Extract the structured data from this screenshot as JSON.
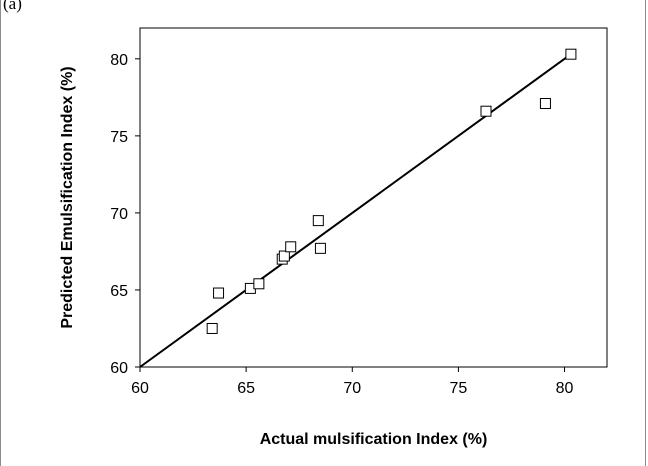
{
  "panel_label": "(a)",
  "chart_data": {
    "type": "scatter",
    "title": "",
    "xlabel": "Actual mulsification Index (%)",
    "ylabel": "Predicted Emulsification Index (%)",
    "xlim": [
      60,
      82
    ],
    "ylim": [
      60,
      82
    ],
    "x_ticks": [
      60,
      65,
      70,
      75,
      80
    ],
    "y_ticks": [
      60,
      65,
      70,
      75,
      80
    ],
    "x_tick_labels": [
      "60",
      "65",
      "70",
      "75",
      "80"
    ],
    "y_tick_labels": [
      "60",
      "65",
      "70",
      "75",
      "80"
    ],
    "grid": false,
    "marker": "open-square",
    "points": [
      {
        "x": 63.4,
        "y": 62.5
      },
      {
        "x": 63.7,
        "y": 64.8
      },
      {
        "x": 65.2,
        "y": 65.1
      },
      {
        "x": 65.6,
        "y": 65.4
      },
      {
        "x": 66.7,
        "y": 67.0
      },
      {
        "x": 66.8,
        "y": 67.2
      },
      {
        "x": 67.1,
        "y": 67.8
      },
      {
        "x": 68.4,
        "y": 69.5
      },
      {
        "x": 68.5,
        "y": 67.7
      },
      {
        "x": 76.3,
        "y": 76.6
      },
      {
        "x": 79.1,
        "y": 77.1
      },
      {
        "x": 80.3,
        "y": 80.3
      }
    ],
    "fit_line": {
      "x": [
        60,
        80.3
      ],
      "y": [
        60,
        80.3
      ]
    }
  }
}
